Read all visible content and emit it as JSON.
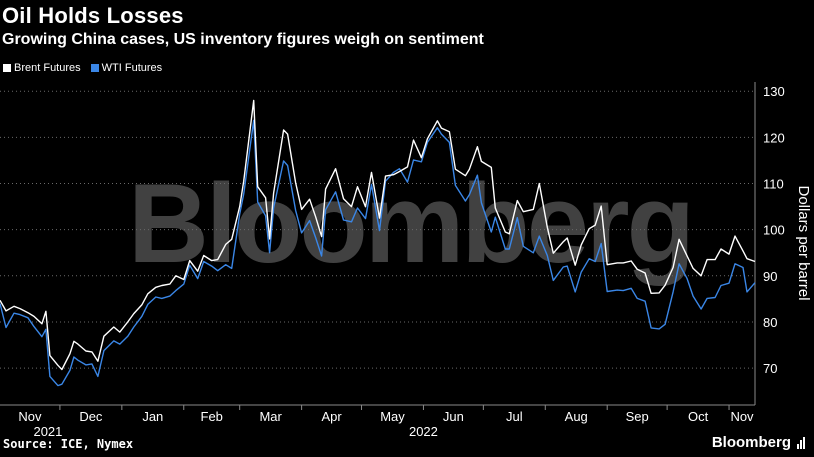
{
  "header": {
    "title": "Oil Holds Losses",
    "subtitle": "Growing China cases, US inventory figures weigh on sentiment"
  },
  "legend": [
    {
      "label": "Brent Futures",
      "color": "#ffffff"
    },
    {
      "label": "WTI Futures",
      "color": "#3a86e6"
    }
  ],
  "watermark": "Bloomberg",
  "footer": {
    "source": "Source: ICE, Nymex",
    "brand": "Bloomberg"
  },
  "chart_data": {
    "type": "line",
    "ylabel": "Dollars per barrel",
    "ylim": [
      62,
      132
    ],
    "yticks": [
      70,
      80,
      90,
      100,
      110,
      120,
      130
    ],
    "y_axis_position": "right",
    "grid": "horizontal dotted",
    "x_month_labels": [
      "Nov",
      "Dec",
      "Jan",
      "Feb",
      "Mar",
      "Apr",
      "May",
      "Jun",
      "Jul",
      "Aug",
      "Sep",
      "Oct",
      "Nov"
    ],
    "x_year_labels": [
      "2021",
      "2022"
    ],
    "x_start": "2021-11-01",
    "x_end": "2022-11-14",
    "series": [
      {
        "name": "Brent Futures",
        "color": "#ffffff",
        "points": [
          [
            "2021-11-01",
            84.7
          ],
          [
            "2021-11-04",
            82.4
          ],
          [
            "2021-11-08",
            83.4
          ],
          [
            "2021-11-11",
            82.9
          ],
          [
            "2021-11-15",
            82.0
          ],
          [
            "2021-11-18",
            81.2
          ],
          [
            "2021-11-22",
            79.6
          ],
          [
            "2021-11-24",
            82.3
          ],
          [
            "2021-11-26",
            72.7
          ],
          [
            "2021-11-30",
            70.6
          ],
          [
            "2021-12-02",
            69.7
          ],
          [
            "2021-12-06",
            73.1
          ],
          [
            "2021-12-08",
            75.8
          ],
          [
            "2021-12-10",
            75.2
          ],
          [
            "2021-12-14",
            73.7
          ],
          [
            "2021-12-17",
            73.5
          ],
          [
            "2021-12-20",
            71.5
          ],
          [
            "2021-12-23",
            76.9
          ],
          [
            "2021-12-28",
            78.9
          ],
          [
            "2021-12-31",
            77.8
          ],
          [
            "2022-01-04",
            80.0
          ],
          [
            "2022-01-07",
            81.8
          ],
          [
            "2022-01-11",
            83.7
          ],
          [
            "2022-01-14",
            86.1
          ],
          [
            "2022-01-18",
            87.5
          ],
          [
            "2022-01-21",
            87.9
          ],
          [
            "2022-01-25",
            88.2
          ],
          [
            "2022-01-28",
            90.0
          ],
          [
            "2022-02-01",
            89.2
          ],
          [
            "2022-02-04",
            93.3
          ],
          [
            "2022-02-08",
            91.0
          ],
          [
            "2022-02-11",
            94.4
          ],
          [
            "2022-02-15",
            93.3
          ],
          [
            "2022-02-18",
            93.5
          ],
          [
            "2022-02-22",
            96.8
          ],
          [
            "2022-02-25",
            97.9
          ],
          [
            "2022-03-01",
            105.0
          ],
          [
            "2022-03-03",
            110.5
          ],
          [
            "2022-03-08",
            127.98
          ],
          [
            "2022-03-10",
            109.3
          ],
          [
            "2022-03-14",
            106.9
          ],
          [
            "2022-03-16",
            98.0
          ],
          [
            "2022-03-18",
            107.9
          ],
          [
            "2022-03-23",
            121.6
          ],
          [
            "2022-03-25",
            120.7
          ],
          [
            "2022-03-29",
            110.2
          ],
          [
            "2022-04-01",
            104.4
          ],
          [
            "2022-04-05",
            106.6
          ],
          [
            "2022-04-08",
            102.8
          ],
          [
            "2022-04-11",
            98.5
          ],
          [
            "2022-04-13",
            108.8
          ],
          [
            "2022-04-18",
            113.2
          ],
          [
            "2022-04-22",
            106.7
          ],
          [
            "2022-04-26",
            105.0
          ],
          [
            "2022-04-29",
            109.3
          ],
          [
            "2022-05-03",
            104.97
          ],
          [
            "2022-05-06",
            112.4
          ],
          [
            "2022-05-10",
            102.5
          ],
          [
            "2022-05-13",
            111.6
          ],
          [
            "2022-05-17",
            111.9
          ],
          [
            "2022-05-20",
            112.6
          ],
          [
            "2022-05-24",
            113.6
          ],
          [
            "2022-05-27",
            119.4
          ],
          [
            "2022-05-31",
            115.6
          ],
          [
            "2022-06-03",
            119.7
          ],
          [
            "2022-06-08",
            123.6
          ],
          [
            "2022-06-10",
            122.0
          ],
          [
            "2022-06-14",
            121.2
          ],
          [
            "2022-06-17",
            113.1
          ],
          [
            "2022-06-22",
            111.7
          ],
          [
            "2022-06-24",
            113.1
          ],
          [
            "2022-06-28",
            117.98
          ],
          [
            "2022-06-30",
            114.8
          ],
          [
            "2022-07-05",
            113.5
          ],
          [
            "2022-07-07",
            104.7
          ],
          [
            "2022-07-12",
            99.5
          ],
          [
            "2022-07-14",
            99.1
          ],
          [
            "2022-07-18",
            106.3
          ],
          [
            "2022-07-21",
            103.9
          ],
          [
            "2022-07-26",
            104.4
          ],
          [
            "2022-07-29",
            110.0
          ],
          [
            "2022-08-02",
            100.5
          ],
          [
            "2022-08-05",
            94.9
          ],
          [
            "2022-08-10",
            97.4
          ],
          [
            "2022-08-12",
            98.2
          ],
          [
            "2022-08-16",
            92.3
          ],
          [
            "2022-08-19",
            96.7
          ],
          [
            "2022-08-23",
            100.2
          ],
          [
            "2022-08-26",
            100.99
          ],
          [
            "2022-08-29",
            105.1
          ],
          [
            "2022-09-01",
            92.4
          ],
          [
            "2022-09-06",
            92.8
          ],
          [
            "2022-09-09",
            92.8
          ],
          [
            "2022-09-13",
            93.2
          ],
          [
            "2022-09-16",
            91.4
          ],
          [
            "2022-09-20",
            90.6
          ],
          [
            "2022-09-23",
            86.2
          ],
          [
            "2022-09-27",
            86.3
          ],
          [
            "2022-09-30",
            87.96
          ],
          [
            "2022-10-04",
            91.8
          ],
          [
            "2022-10-07",
            97.9
          ],
          [
            "2022-10-11",
            94.3
          ],
          [
            "2022-10-14",
            91.6
          ],
          [
            "2022-10-18",
            90.0
          ],
          [
            "2022-10-21",
            93.5
          ],
          [
            "2022-10-25",
            93.5
          ],
          [
            "2022-10-28",
            95.8
          ],
          [
            "2022-11-01",
            94.7
          ],
          [
            "2022-11-04",
            98.6
          ],
          [
            "2022-11-08",
            95.4
          ],
          [
            "2022-11-10",
            93.7
          ],
          [
            "2022-11-14",
            93.1
          ]
        ]
      },
      {
        "name": "WTI Futures",
        "color": "#3a86e6",
        "points": [
          [
            "2021-11-01",
            84.0
          ],
          [
            "2021-11-04",
            78.8
          ],
          [
            "2021-11-08",
            81.9
          ],
          [
            "2021-11-11",
            81.6
          ],
          [
            "2021-11-15",
            80.9
          ],
          [
            "2021-11-18",
            79.0
          ],
          [
            "2021-11-22",
            76.8
          ],
          [
            "2021-11-24",
            78.4
          ],
          [
            "2021-11-26",
            68.2
          ],
          [
            "2021-11-30",
            66.2
          ],
          [
            "2021-12-02",
            66.5
          ],
          [
            "2021-12-06",
            69.5
          ],
          [
            "2021-12-08",
            72.4
          ],
          [
            "2021-12-10",
            71.7
          ],
          [
            "2021-12-14",
            70.7
          ],
          [
            "2021-12-17",
            70.9
          ],
          [
            "2021-12-20",
            68.2
          ],
          [
            "2021-12-23",
            73.8
          ],
          [
            "2021-12-28",
            75.9
          ],
          [
            "2021-12-31",
            75.2
          ],
          [
            "2022-01-04",
            76.9
          ],
          [
            "2022-01-07",
            78.9
          ],
          [
            "2022-01-11",
            81.2
          ],
          [
            "2022-01-14",
            83.8
          ],
          [
            "2022-01-18",
            85.4
          ],
          [
            "2022-01-21",
            85.1
          ],
          [
            "2022-01-25",
            85.6
          ],
          [
            "2022-01-28",
            86.8
          ],
          [
            "2022-02-01",
            88.2
          ],
          [
            "2022-02-04",
            92.3
          ],
          [
            "2022-02-08",
            89.4
          ],
          [
            "2022-02-11",
            93.1
          ],
          [
            "2022-02-15",
            92.1
          ],
          [
            "2022-02-18",
            91.1
          ],
          [
            "2022-02-22",
            92.4
          ],
          [
            "2022-02-25",
            91.6
          ],
          [
            "2022-03-01",
            103.4
          ],
          [
            "2022-03-03",
            107.7
          ],
          [
            "2022-03-08",
            123.7
          ],
          [
            "2022-03-10",
            106.0
          ],
          [
            "2022-03-14",
            103.0
          ],
          [
            "2022-03-16",
            95.0
          ],
          [
            "2022-03-18",
            104.7
          ],
          [
            "2022-03-23",
            114.9
          ],
          [
            "2022-03-25",
            113.9
          ],
          [
            "2022-03-29",
            104.2
          ],
          [
            "2022-04-01",
            99.3
          ],
          [
            "2022-04-05",
            101.96
          ],
          [
            "2022-04-08",
            98.3
          ],
          [
            "2022-04-11",
            94.3
          ],
          [
            "2022-04-13",
            104.3
          ],
          [
            "2022-04-18",
            108.2
          ],
          [
            "2022-04-22",
            102.1
          ],
          [
            "2022-04-26",
            101.7
          ],
          [
            "2022-04-29",
            104.7
          ],
          [
            "2022-05-03",
            102.4
          ],
          [
            "2022-05-06",
            109.8
          ],
          [
            "2022-05-10",
            99.8
          ],
          [
            "2022-05-13",
            110.5
          ],
          [
            "2022-05-17",
            112.4
          ],
          [
            "2022-05-20",
            113.2
          ],
          [
            "2022-05-24",
            110.3
          ],
          [
            "2022-05-27",
            115.1
          ],
          [
            "2022-05-31",
            114.7
          ],
          [
            "2022-06-03",
            118.9
          ],
          [
            "2022-06-08",
            122.1
          ],
          [
            "2022-06-10",
            120.7
          ],
          [
            "2022-06-14",
            118.9
          ],
          [
            "2022-06-17",
            109.6
          ],
          [
            "2022-06-22",
            106.2
          ],
          [
            "2022-06-24",
            107.6
          ],
          [
            "2022-06-28",
            111.8
          ],
          [
            "2022-06-30",
            105.8
          ],
          [
            "2022-07-05",
            99.5
          ],
          [
            "2022-07-07",
            102.7
          ],
          [
            "2022-07-12",
            95.8
          ],
          [
            "2022-07-14",
            95.8
          ],
          [
            "2022-07-18",
            102.6
          ],
          [
            "2022-07-21",
            96.4
          ],
          [
            "2022-07-26",
            94.98
          ],
          [
            "2022-07-29",
            98.6
          ],
          [
            "2022-08-02",
            94.4
          ],
          [
            "2022-08-05",
            89.0
          ],
          [
            "2022-08-10",
            91.9
          ],
          [
            "2022-08-12",
            92.1
          ],
          [
            "2022-08-16",
            86.5
          ],
          [
            "2022-08-19",
            90.8
          ],
          [
            "2022-08-23",
            93.7
          ],
          [
            "2022-08-26",
            93.1
          ],
          [
            "2022-08-29",
            97.0
          ],
          [
            "2022-09-01",
            86.6
          ],
          [
            "2022-09-06",
            86.9
          ],
          [
            "2022-09-09",
            86.8
          ],
          [
            "2022-09-13",
            87.3
          ],
          [
            "2022-09-16",
            85.1
          ],
          [
            "2022-09-20",
            84.5
          ],
          [
            "2022-09-23",
            78.7
          ],
          [
            "2022-09-27",
            78.5
          ],
          [
            "2022-09-30",
            79.5
          ],
          [
            "2022-10-04",
            86.5
          ],
          [
            "2022-10-07",
            92.6
          ],
          [
            "2022-10-11",
            89.4
          ],
          [
            "2022-10-14",
            85.6
          ],
          [
            "2022-10-18",
            82.8
          ],
          [
            "2022-10-21",
            85.1
          ],
          [
            "2022-10-25",
            85.3
          ],
          [
            "2022-10-28",
            87.9
          ],
          [
            "2022-11-01",
            88.4
          ],
          [
            "2022-11-04",
            92.6
          ],
          [
            "2022-11-08",
            91.8
          ],
          [
            "2022-11-10",
            86.5
          ],
          [
            "2022-11-14",
            88.5
          ]
        ]
      }
    ]
  }
}
